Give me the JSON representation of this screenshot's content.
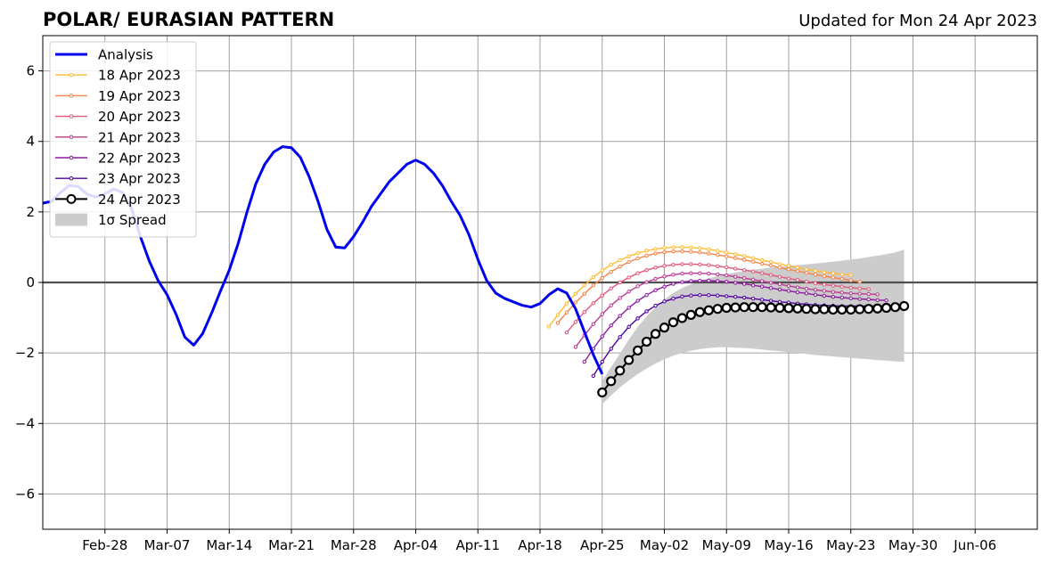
{
  "chart_data": {
    "type": "line",
    "title": "POLAR/ EURASIAN  PATTERN",
    "subtitle": "Updated for Mon 24 Apr 2023",
    "xlabel": "",
    "ylabel": "",
    "x_range": [
      "2023-02-21",
      "2023-06-13"
    ],
    "ylim": [
      -7,
      7
    ],
    "grid": true,
    "legend_position": "top-left",
    "x_ticks": [
      {
        "date": "2023-02-28",
        "label": "Feb-28"
      },
      {
        "date": "2023-03-07",
        "label": "Mar-07"
      },
      {
        "date": "2023-03-14",
        "label": "Mar-14"
      },
      {
        "date": "2023-03-21",
        "label": "Mar-21"
      },
      {
        "date": "2023-03-28",
        "label": "Mar-28"
      },
      {
        "date": "2023-04-04",
        "label": "Apr-04"
      },
      {
        "date": "2023-04-11",
        "label": "Apr-11"
      },
      {
        "date": "2023-04-18",
        "label": "Apr-18"
      },
      {
        "date": "2023-04-25",
        "label": "Apr-25"
      },
      {
        "date": "2023-05-02",
        "label": "May-02"
      },
      {
        "date": "2023-05-09",
        "label": "May-09"
      },
      {
        "date": "2023-05-16",
        "label": "May-16"
      },
      {
        "date": "2023-05-23",
        "label": "May-23"
      },
      {
        "date": "2023-05-30",
        "label": "May-30"
      },
      {
        "date": "2023-06-06",
        "label": "Jun-06"
      }
    ],
    "y_ticks": [
      {
        "value": 6,
        "label": "6"
      },
      {
        "value": 4,
        "label": "4"
      },
      {
        "value": 2,
        "label": "2"
      },
      {
        "value": 0,
        "label": "0"
      },
      {
        "value": -2,
        "label": "−2"
      },
      {
        "value": -4,
        "label": "−4"
      },
      {
        "value": -6,
        "label": "−6"
      }
    ],
    "analysis": {
      "name": "Analysis",
      "color": "#0000ee",
      "start_date": "2023-02-21",
      "values": [
        2.25,
        2.3,
        2.55,
        2.75,
        2.72,
        2.5,
        2.42,
        2.52,
        2.65,
        2.55,
        2.1,
        1.3,
        0.6,
        0.05,
        -0.35,
        -0.9,
        -1.55,
        -1.78,
        -1.45,
        -0.88,
        -0.25,
        0.35,
        1.1,
        2.0,
        2.8,
        3.35,
        3.7,
        3.85,
        3.82,
        3.55,
        3.0,
        2.3,
        1.5,
        1.0,
        0.98,
        1.3,
        1.7,
        2.15,
        2.5,
        2.85,
        3.1,
        3.35,
        3.47,
        3.35,
        3.1,
        2.75,
        2.3,
        1.9,
        1.35,
        0.65,
        0.05,
        -0.3,
        -0.45,
        -0.55,
        -0.65,
        -0.7,
        -0.6,
        -0.35,
        -0.18,
        -0.3,
        -0.75,
        -1.4,
        -2.05,
        -2.6
      ]
    },
    "forecasts": [
      {
        "name": "18 Apr 2023",
        "color": "#ffbb33",
        "start_date": "2023-04-19",
        "values": [
          -1.25,
          -0.92,
          -0.6,
          -0.32,
          -0.08,
          0.15,
          0.34,
          0.5,
          0.63,
          0.74,
          0.83,
          0.9,
          0.95,
          0.98,
          1.0,
          1.0,
          0.99,
          0.97,
          0.94,
          0.9,
          0.85,
          0.8,
          0.75,
          0.69,
          0.63,
          0.58,
          0.52,
          0.47,
          0.42,
          0.37,
          0.33,
          0.29,
          0.26,
          0.23,
          0.21
        ]
      },
      {
        "name": "19 Apr 2023",
        "color": "#f5844c",
        "start_date": "2023-04-20",
        "values": [
          -1.15,
          -0.85,
          -0.57,
          -0.32,
          -0.08,
          0.13,
          0.3,
          0.45,
          0.58,
          0.68,
          0.76,
          0.82,
          0.86,
          0.88,
          0.88,
          0.87,
          0.85,
          0.82,
          0.78,
          0.74,
          0.69,
          0.64,
          0.59,
          0.53,
          0.48,
          0.42,
          0.37,
          0.32,
          0.27,
          0.22,
          0.18,
          0.14,
          0.1,
          0.06,
          0.02
        ]
      },
      {
        "name": "20 Apr 2023",
        "color": "#e0577a",
        "start_date": "2023-04-21",
        "values": [
          -1.42,
          -1.12,
          -0.84,
          -0.59,
          -0.37,
          -0.17,
          0.0,
          0.14,
          0.26,
          0.35,
          0.42,
          0.47,
          0.5,
          0.52,
          0.52,
          0.51,
          0.49,
          0.46,
          0.43,
          0.39,
          0.35,
          0.31,
          0.26,
          0.21,
          0.16,
          0.11,
          0.07,
          0.02,
          -0.02,
          -0.06,
          -0.09,
          -0.12,
          -0.15,
          -0.17,
          -0.19
        ]
      },
      {
        "name": "21 Apr 2023",
        "color": "#bb3a92",
        "start_date": "2023-04-22",
        "values": [
          -1.83,
          -1.5,
          -1.18,
          -0.9,
          -0.65,
          -0.44,
          -0.26,
          -0.11,
          0.01,
          0.1,
          0.17,
          0.22,
          0.25,
          0.26,
          0.26,
          0.25,
          0.23,
          0.2,
          0.16,
          0.12,
          0.08,
          0.04,
          -0.01,
          -0.05,
          -0.1,
          -0.14,
          -0.18,
          -0.21,
          -0.24,
          -0.27,
          -0.29,
          -0.31,
          -0.32,
          -0.33,
          -0.34
        ]
      },
      {
        "name": "22 Apr 2023",
        "color": "#8b1a9e",
        "start_date": "2023-04-23",
        "values": [
          -2.25,
          -1.88,
          -1.53,
          -1.22,
          -0.95,
          -0.72,
          -0.52,
          -0.36,
          -0.22,
          -0.12,
          -0.04,
          0.01,
          0.04,
          0.05,
          0.05,
          0.04,
          0.02,
          -0.01,
          -0.04,
          -0.08,
          -0.12,
          -0.16,
          -0.2,
          -0.24,
          -0.28,
          -0.31,
          -0.35,
          -0.38,
          -0.41,
          -0.43,
          -0.45,
          -0.47,
          -0.48,
          -0.5,
          -0.51
        ]
      },
      {
        "name": "23 Apr 2023",
        "color": "#4f00a0",
        "start_date": "2023-04-24",
        "values": [
          -2.65,
          -2.25,
          -1.88,
          -1.55,
          -1.26,
          -1.02,
          -0.82,
          -0.66,
          -0.54,
          -0.46,
          -0.4,
          -0.37,
          -0.36,
          -0.36,
          -0.37,
          -0.39,
          -0.41,
          -0.43,
          -0.46,
          -0.49,
          -0.52,
          -0.55,
          -0.57,
          -0.6,
          -0.62,
          -0.64,
          -0.65,
          -0.66,
          -0.67,
          -0.67,
          -0.67,
          -0.67,
          -0.67,
          -0.67,
          -0.67
        ]
      }
    ],
    "current": {
      "name": "24 Apr 2023",
      "color": "#000000",
      "start_date": "2023-04-25",
      "values": [
        -3.12,
        -2.8,
        -2.5,
        -2.2,
        -1.93,
        -1.68,
        -1.46,
        -1.28,
        -1.13,
        -1.01,
        -0.92,
        -0.84,
        -0.79,
        -0.75,
        -0.72,
        -0.71,
        -0.7,
        -0.7,
        -0.7,
        -0.71,
        -0.72,
        -0.73,
        -0.74,
        -0.75,
        -0.76,
        -0.76,
        -0.77,
        -0.77,
        -0.77,
        -0.76,
        -0.75,
        -0.74,
        -0.72,
        -0.7,
        -0.67
      ]
    },
    "spread": {
      "name": "1σ Spread",
      "color": "#cccccc",
      "start_date": "2023-04-25",
      "lower": [
        -3.45,
        -3.2,
        -2.98,
        -2.78,
        -2.6,
        -2.44,
        -2.3,
        -2.18,
        -2.08,
        -2.0,
        -1.94,
        -1.89,
        -1.86,
        -1.84,
        -1.84,
        -1.85,
        -1.86,
        -1.88,
        -1.9,
        -1.93,
        -1.95,
        -1.98,
        -2.0,
        -2.03,
        -2.06,
        -2.08,
        -2.1,
        -2.12,
        -2.14,
        -2.16,
        -2.18,
        -2.2,
        -2.22,
        -2.24,
        -2.25
      ],
      "upper": [
        -2.8,
        -2.4,
        -2.02,
        -1.62,
        -1.26,
        -0.96,
        -0.7,
        -0.48,
        -0.3,
        -0.16,
        -0.05,
        0.04,
        0.12,
        0.18,
        0.24,
        0.28,
        0.32,
        0.36,
        0.39,
        0.42,
        0.44,
        0.47,
        0.49,
        0.51,
        0.54,
        0.56,
        0.59,
        0.62,
        0.65,
        0.68,
        0.72,
        0.76,
        0.8,
        0.85,
        0.93
      ]
    }
  }
}
